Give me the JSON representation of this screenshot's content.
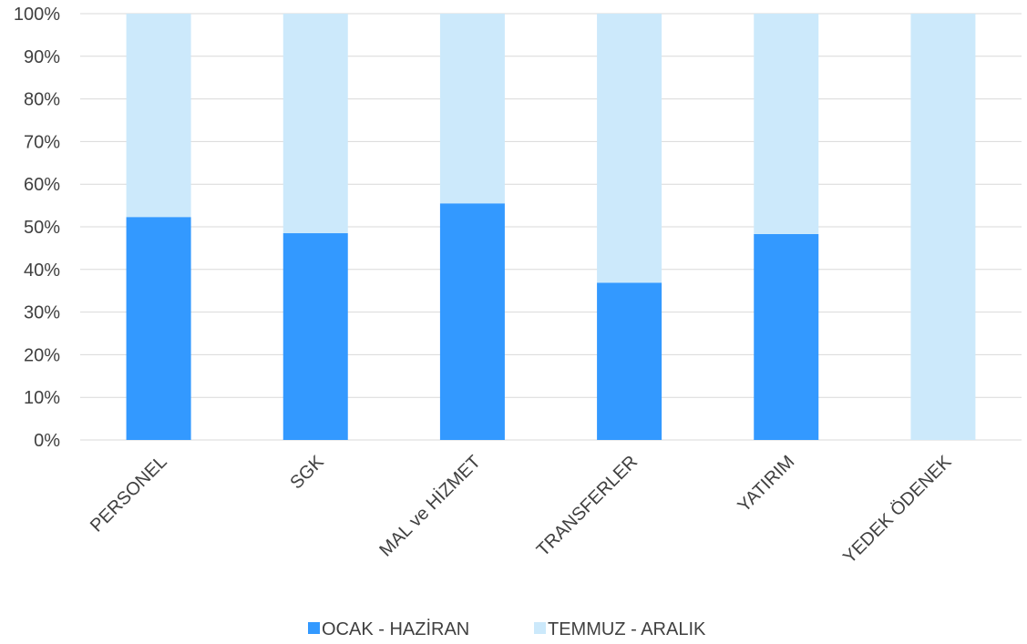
{
  "chart_data": {
    "type": "bar",
    "stacked": true,
    "percent": true,
    "categories": [
      "PERSONEL",
      "SGK",
      "MAL ve HİZMET",
      "TRANSFERLER",
      "YATIRIM",
      "YEDEK ÖDENEK"
    ],
    "series": [
      {
        "name": "OCAK - HAZİRAN",
        "values": [
          52.3,
          48.5,
          55.5,
          36.9,
          48.3,
          0
        ],
        "color": "#3399ff"
      },
      {
        "name": "TEMMUZ - ARALIK",
        "values": [
          47.7,
          51.5,
          44.5,
          63.1,
          51.7,
          100
        ],
        "color": "#cce9fb"
      }
    ],
    "ylim": [
      0,
      100
    ],
    "yticks": [
      "0%",
      "10%",
      "20%",
      "30%",
      "40%",
      "50%",
      "60%",
      "70%",
      "80%",
      "90%",
      "100%"
    ],
    "grid": true,
    "legend": "bottom",
    "title": "",
    "xlabel": "",
    "ylabel": ""
  }
}
